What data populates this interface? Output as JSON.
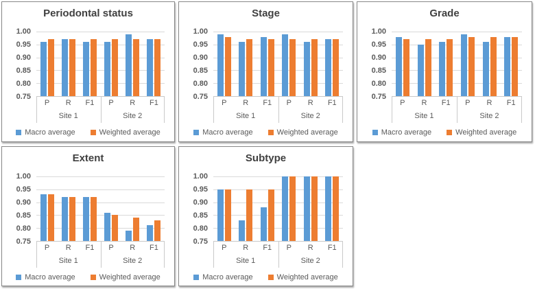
{
  "colors": {
    "macro": "#5B9BD5",
    "weighted": "#ED7D31",
    "gridline": "#D9D9D9",
    "axis_line": "#C9C9C9",
    "text": "#595959",
    "title_text": "#404040",
    "panel_border": "#888888",
    "background": "#FFFFFF"
  },
  "legend": {
    "items": [
      "Macro average",
      "Weighted average"
    ]
  },
  "axis": {
    "yticks": [
      "1.00",
      "0.95",
      "0.90",
      "0.85",
      "0.80",
      "0.75"
    ],
    "ymin": 0.75,
    "ymax": 1.0
  },
  "chart_data": [
    {
      "type": "bar",
      "title": "Periodontal status",
      "group_labels": [
        "Site 1",
        "Site 2"
      ],
      "categories": [
        "P",
        "R",
        "F1",
        "P",
        "R",
        "F1"
      ],
      "ylim": [
        0.75,
        1.0
      ],
      "yticks": [
        "1.00",
        "0.95",
        "0.90",
        "0.85",
        "0.80",
        "0.75"
      ],
      "grid": true,
      "legend_position": "bottom",
      "series": [
        {
          "name": "Macro average",
          "color": "#5B9BD5",
          "values": [
            0.96,
            0.97,
            0.96,
            0.96,
            0.99,
            0.97
          ]
        },
        {
          "name": "Weighted average",
          "color": "#ED7D31",
          "values": [
            0.97,
            0.97,
            0.97,
            0.97,
            0.97,
            0.97
          ]
        }
      ]
    },
    {
      "type": "bar",
      "title": "Stage",
      "group_labels": [
        "Site 1",
        "Site 2"
      ],
      "categories": [
        "P",
        "R",
        "F1",
        "P",
        "R",
        "F1"
      ],
      "ylim": [
        0.75,
        1.0
      ],
      "yticks": [
        "1.00",
        "0.95",
        "0.90",
        "0.85",
        "0.80",
        "0.75"
      ],
      "grid": true,
      "legend_position": "bottom",
      "series": [
        {
          "name": "Macro average",
          "color": "#5B9BD5",
          "values": [
            0.99,
            0.96,
            0.98,
            0.99,
            0.96,
            0.97
          ]
        },
        {
          "name": "Weighted average",
          "color": "#ED7D31",
          "values": [
            0.98,
            0.97,
            0.97,
            0.97,
            0.97,
            0.97
          ]
        }
      ]
    },
    {
      "type": "bar",
      "title": "Grade",
      "group_labels": [
        "Site 1",
        "Site 2"
      ],
      "categories": [
        "P",
        "R",
        "F1",
        "P",
        "R",
        "F1"
      ],
      "ylim": [
        0.75,
        1.0
      ],
      "yticks": [
        "1.00",
        "0.95",
        "0.90",
        "0.85",
        "0.80",
        "0.75"
      ],
      "grid": true,
      "legend_position": "bottom",
      "series": [
        {
          "name": "Macro average",
          "color": "#5B9BD5",
          "values": [
            0.98,
            0.95,
            0.96,
            0.99,
            0.96,
            0.98
          ]
        },
        {
          "name": "Weighted average",
          "color": "#ED7D31",
          "values": [
            0.97,
            0.97,
            0.97,
            0.98,
            0.98,
            0.98
          ]
        }
      ]
    },
    {
      "type": "bar",
      "title": "Extent",
      "group_labels": [
        "Site 1",
        "Site 2"
      ],
      "categories": [
        "P",
        "R",
        "F1",
        "P",
        "R",
        "F1"
      ],
      "ylim": [
        0.75,
        1.0
      ],
      "yticks": [
        "1.00",
        "0.95",
        "0.90",
        "0.85",
        "0.80",
        "0.75"
      ],
      "grid": true,
      "legend_position": "bottom",
      "series": [
        {
          "name": "Macro average",
          "color": "#5B9BD5",
          "values": [
            0.93,
            0.92,
            0.92,
            0.86,
            0.79,
            0.81
          ]
        },
        {
          "name": "Weighted average",
          "color": "#ED7D31",
          "values": [
            0.93,
            0.92,
            0.92,
            0.85,
            0.84,
            0.83
          ]
        }
      ]
    },
    {
      "type": "bar",
      "title": "Subtype",
      "group_labels": [
        "Site 1",
        "Site 2"
      ],
      "categories": [
        "P",
        "R",
        "F1",
        "P",
        "R",
        "F1"
      ],
      "ylim": [
        0.75,
        1.0
      ],
      "yticks": [
        "1.00",
        "0.95",
        "0.90",
        "0.85",
        "0.80",
        "0.75"
      ],
      "grid": true,
      "legend_position": "bottom",
      "series": [
        {
          "name": "Macro average",
          "color": "#5B9BD5",
          "values": [
            0.95,
            0.83,
            0.88,
            1.0,
            1.0,
            1.0
          ]
        },
        {
          "name": "Weighted average",
          "color": "#ED7D31",
          "values": [
            0.95,
            0.95,
            0.95,
            1.0,
            1.0,
            1.0
          ]
        }
      ]
    }
  ]
}
